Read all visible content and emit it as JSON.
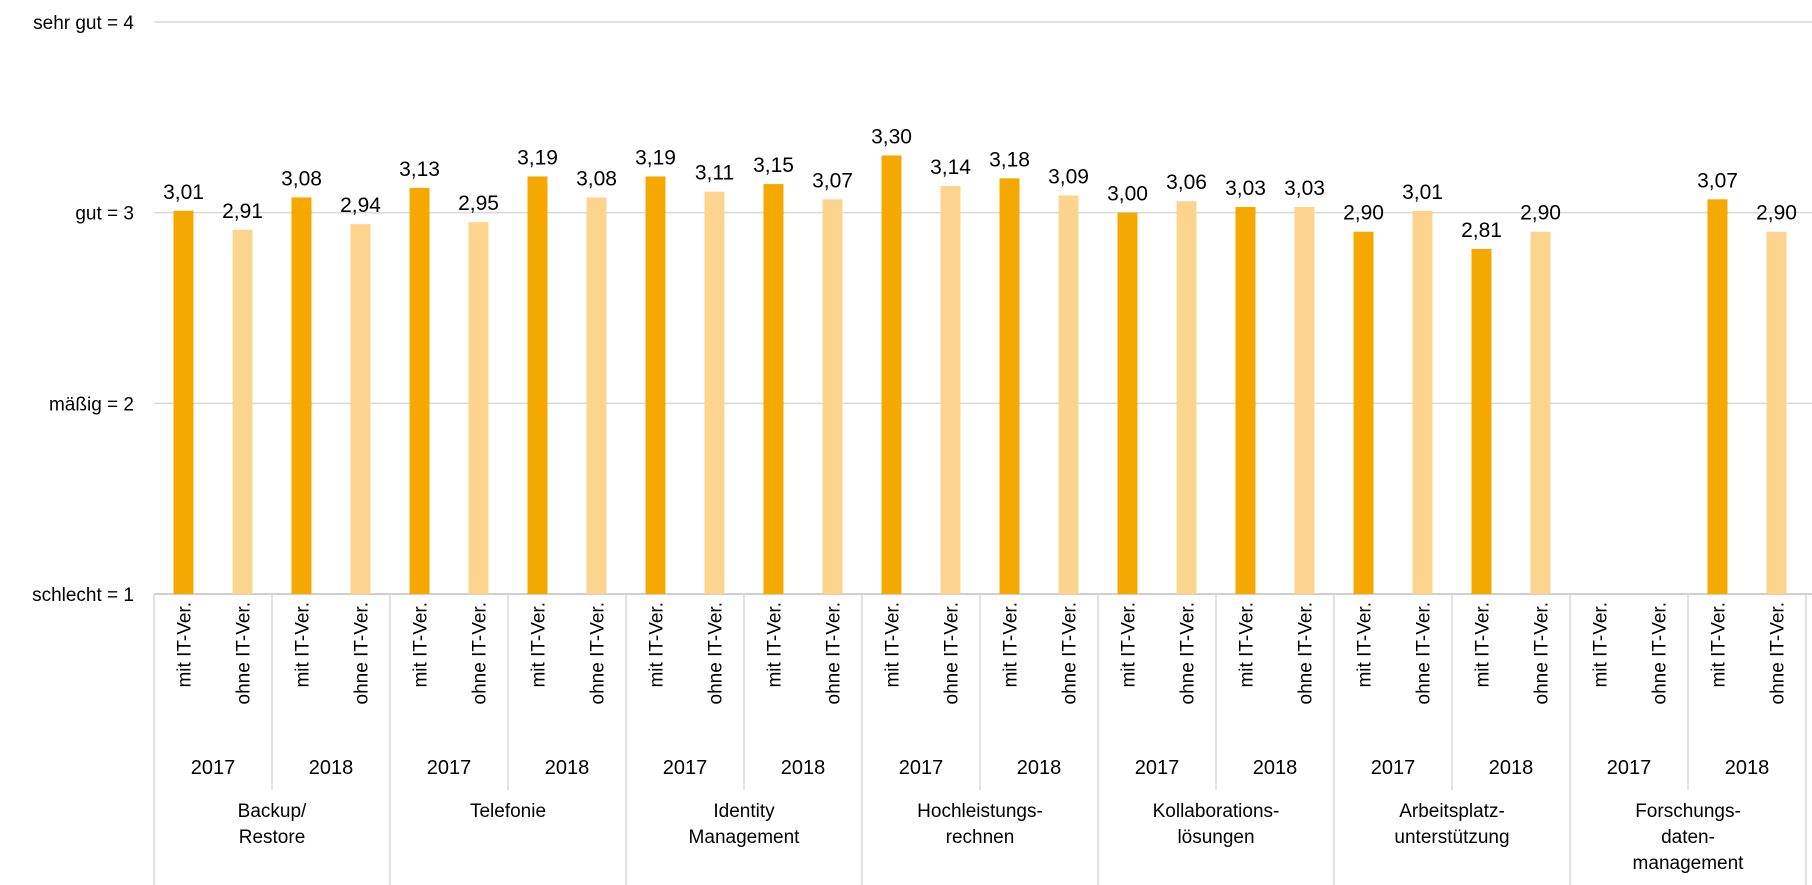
{
  "chart_data": {
    "type": "bar",
    "title": "",
    "xlabel": "",
    "ylabel": "",
    "ylim": [
      1,
      4
    ],
    "y_ticks": [
      {
        "value": 1,
        "label": "schlecht = 1"
      },
      {
        "value": 2,
        "label": "mäßig = 2"
      },
      {
        "value": 3,
        "label": "gut = 3"
      },
      {
        "value": 4,
        "label": "sehr gut = 4"
      }
    ],
    "grid": true,
    "legend": "none",
    "colors": {
      "mit_it_ver": "#F5A800",
      "ohne_it_ver": "#FCD48E",
      "grid": "#D9D9D9",
      "axis": "#BFBFBF"
    },
    "bar_labels": [
      "mit IT-Ver.",
      "ohne IT-Ver."
    ],
    "groups": [
      {
        "name": "Backup/\nRestore",
        "years": [
          {
            "year": "2017",
            "values": [
              3.01,
              2.91
            ],
            "labels": [
              "3,01",
              "2,91"
            ]
          },
          {
            "year": "2018",
            "values": [
              3.08,
              2.94
            ],
            "labels": [
              "3,08",
              "2,94"
            ]
          }
        ]
      },
      {
        "name": "Telefonie",
        "years": [
          {
            "year": "2017",
            "values": [
              3.13,
              2.95
            ],
            "labels": [
              "3,13",
              "2,95"
            ]
          },
          {
            "year": "2018",
            "values": [
              3.19,
              3.08
            ],
            "labels": [
              "3,19",
              "3,08"
            ]
          }
        ]
      },
      {
        "name": "Identity\nManagement",
        "years": [
          {
            "year": "2017",
            "values": [
              3.19,
              3.11
            ],
            "labels": [
              "3,19",
              "3,11"
            ]
          },
          {
            "year": "2018",
            "values": [
              3.15,
              3.07
            ],
            "labels": [
              "3,15",
              "3,07"
            ]
          }
        ]
      },
      {
        "name": "Hochleistungs-\nrechnen",
        "years": [
          {
            "year": "2017",
            "values": [
              3.3,
              3.14
            ],
            "labels": [
              "3,30",
              "3,14"
            ]
          },
          {
            "year": "2018",
            "values": [
              3.18,
              3.09
            ],
            "labels": [
              "3,18",
              "3,09"
            ]
          }
        ]
      },
      {
        "name": "Kollaborations-\nlösungen",
        "years": [
          {
            "year": "2017",
            "values": [
              3.0,
              3.06
            ],
            "labels": [
              "3,00",
              "3,06"
            ]
          },
          {
            "year": "2018",
            "values": [
              3.03,
              3.03
            ],
            "labels": [
              "3,03",
              "3,03"
            ]
          }
        ]
      },
      {
        "name": "Arbeitsplatz-\nunterstützung",
        "years": [
          {
            "year": "2017",
            "values": [
              2.9,
              3.01
            ],
            "labels": [
              "2,90",
              "3,01"
            ]
          },
          {
            "year": "2018",
            "values": [
              2.81,
              2.9
            ],
            "labels": [
              "2,81",
              "2,90"
            ]
          }
        ]
      },
      {
        "name": "Forschungs-\ndaten-\nmanagement",
        "years": [
          {
            "year": "2017",
            "values": [
              null,
              null
            ],
            "labels": [
              "",
              ""
            ]
          },
          {
            "year": "2018",
            "values": [
              3.07,
              2.9
            ],
            "labels": [
              "3,07",
              "2,90"
            ]
          }
        ]
      }
    ]
  }
}
